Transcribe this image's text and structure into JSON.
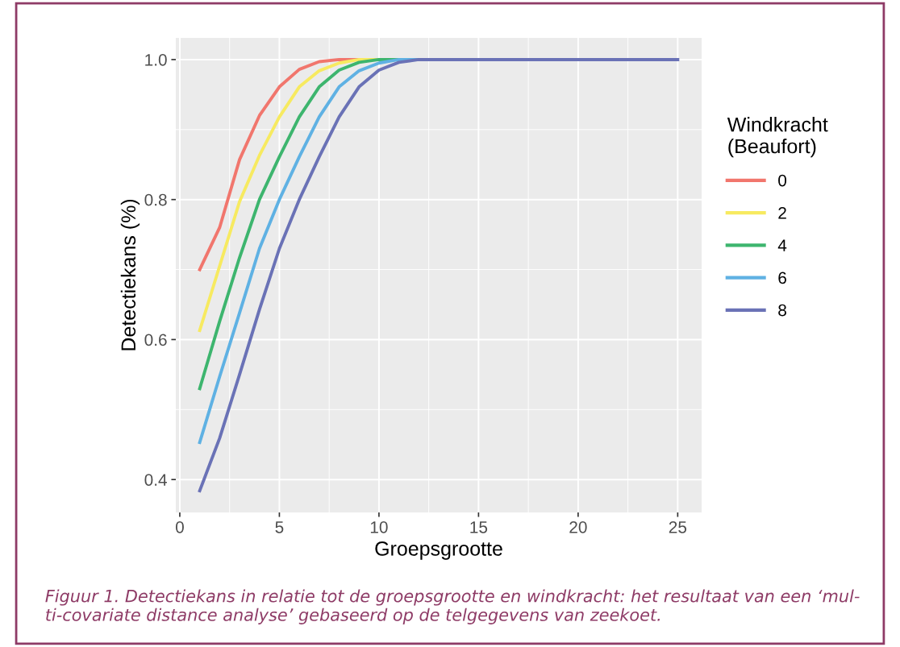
{
  "chart_data": {
    "type": "line",
    "xlabel": "Groepsgrootte",
    "ylabel": "Detectiekans (%)",
    "legend_title": "Windkracht\n(Beaufort)",
    "x": [
      1,
      2,
      3,
      4,
      5,
      6,
      7,
      8,
      9,
      10,
      11,
      12,
      13,
      14,
      15,
      16,
      17,
      18,
      19,
      20,
      21,
      22,
      23,
      24,
      25
    ],
    "series": [
      {
        "name": "0",
        "color": "#f1766d",
        "values": [
          0.7,
          0.76,
          0.857,
          0.92,
          0.961,
          0.986,
          0.997,
          1.0,
          1.0,
          null,
          null,
          null,
          null,
          null,
          null,
          null,
          null,
          null,
          null,
          null,
          null,
          null,
          null,
          null,
          null
        ]
      },
      {
        "name": "2",
        "color": "#f7ea60",
        "values": [
          0.613,
          0.705,
          0.797,
          0.863,
          0.918,
          0.961,
          0.984,
          0.995,
          1.0,
          1.0,
          null,
          null,
          null,
          null,
          null,
          null,
          null,
          null,
          null,
          null,
          null,
          null,
          null,
          null,
          null
        ]
      },
      {
        "name": "4",
        "color": "#3db56e",
        "values": [
          0.53,
          0.626,
          0.717,
          0.8,
          0.861,
          0.918,
          0.961,
          0.985,
          0.996,
          1.0,
          1.0,
          null,
          null,
          null,
          null,
          null,
          null,
          null,
          null,
          null,
          null,
          null,
          null,
          null,
          null
        ]
      },
      {
        "name": "6",
        "color": "#5fb1e3",
        "values": [
          0.453,
          0.547,
          0.638,
          0.73,
          0.8,
          0.861,
          0.918,
          0.961,
          0.984,
          0.995,
          1.0,
          1.0,
          null,
          null,
          null,
          null,
          null,
          null,
          null,
          null,
          null,
          null,
          null,
          null,
          null
        ]
      },
      {
        "name": "8",
        "color": "#6a72b6",
        "values": [
          0.384,
          0.459,
          0.55,
          0.643,
          0.73,
          0.8,
          0.861,
          0.918,
          0.961,
          0.985,
          0.996,
          1.0,
          1.0,
          1.0,
          1.0,
          1.0,
          1.0,
          1.0,
          1.0,
          1.0,
          1.0,
          1.0,
          1.0,
          1.0,
          1.0
        ]
      }
    ],
    "xlim": [
      -0.2,
      26.2
    ],
    "xticks": [
      0,
      5,
      10,
      15,
      20,
      25
    ],
    "ylim": [
      0.353,
      1.031
    ],
    "yticks": [
      {
        "value": 0.4,
        "label": "0.4"
      },
      {
        "value": 0.6,
        "label": "0.6"
      },
      {
        "value": 0.8,
        "label": "0.8"
      },
      {
        "value": 1.0,
        "label": "1.0"
      }
    ],
    "grid": true,
    "legend": "right",
    "marker": "none",
    "line_style": "solid",
    "annotations": [
      "Figuur 1. Detectiekans in relatie tot de groepsgrootte en windkracht: het resultaat van een ‘mul-\nti-covariate distance analyse’ gebaseerd op de telgegevens van zeekoet."
    ]
  }
}
